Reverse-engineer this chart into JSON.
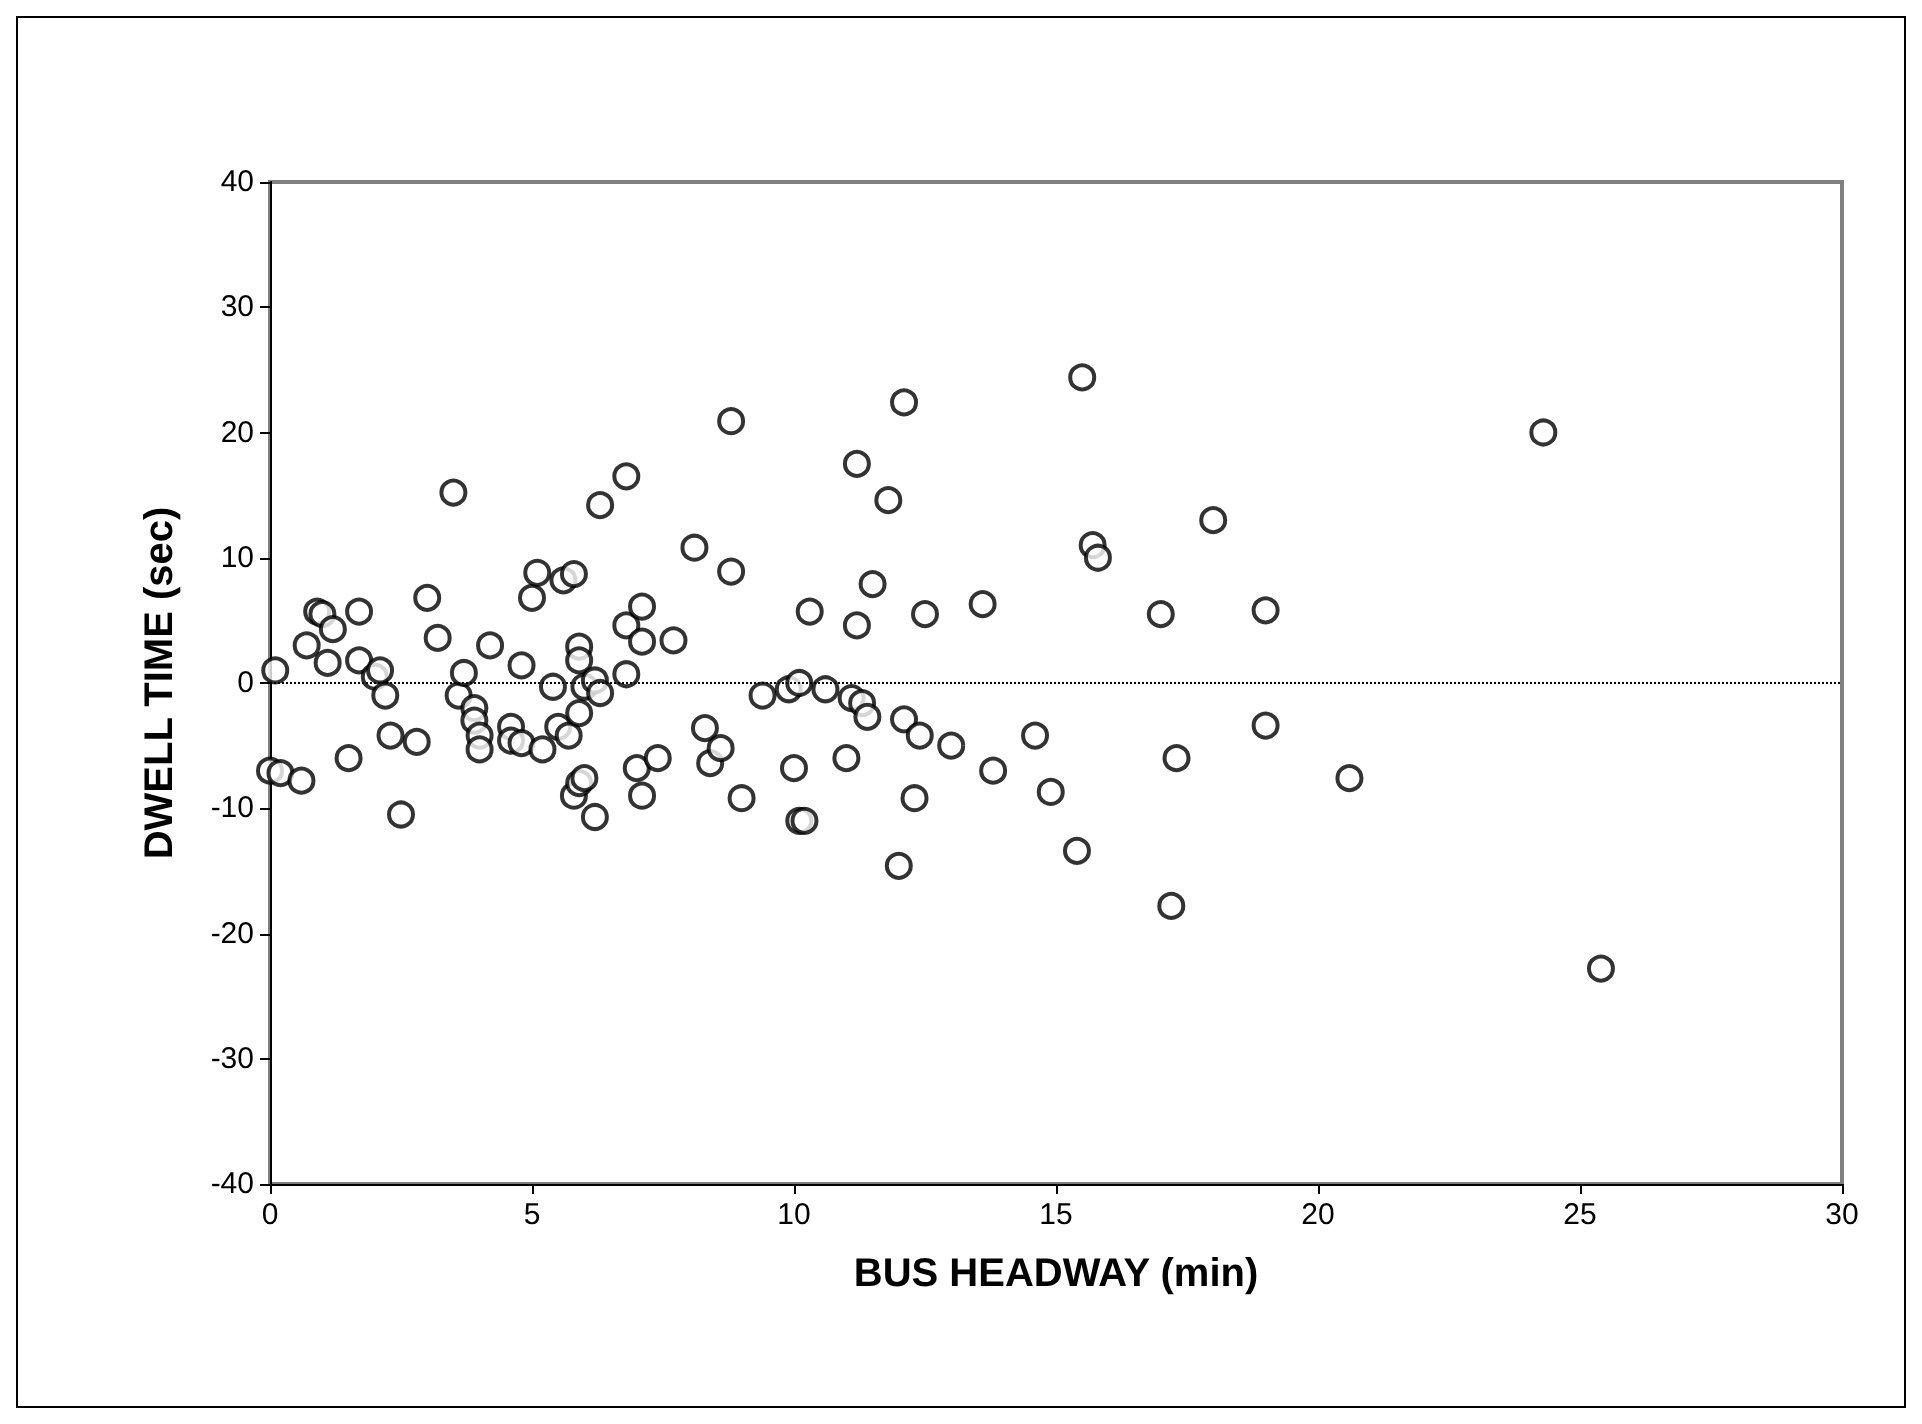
{
  "chart_data": {
    "type": "scatter",
    "xlabel": "BUS HEADWAY (min)",
    "ylabel": "DWELL TIME (sec)",
    "marker": "circle",
    "grid": false,
    "xlim": [
      0,
      30
    ],
    "xticks": [
      0,
      5,
      10,
      15,
      20,
      25,
      30
    ],
    "ylim": [
      -40,
      40
    ],
    "yticks": [
      -40,
      -30,
      -20,
      -10,
      0,
      10,
      20,
      30,
      40
    ],
    "ref_lines": [
      {
        "axis": "y",
        "value": 0,
        "line_style": "dotted",
        "color": "#000000"
      }
    ],
    "series": [
      {
        "color": "#000000",
        "x": [
          0.1,
          0,
          0.2,
          0.6,
          0.7,
          0.9,
          1.0,
          1.2,
          1.1,
          1.5,
          1.7,
          1.7,
          2.0,
          2.1,
          2.2,
          2.3,
          2.5,
          2.8,
          3.0,
          3.2,
          3.5,
          3.6,
          3.7,
          3.9,
          3.9,
          4.0,
          4.0,
          4.2,
          4.6,
          4.6,
          4.8,
          4.8,
          5.0,
          5.1,
          5.2,
          5.4,
          5.5,
          5.6,
          5.7,
          5.8,
          5.9,
          5.9,
          5.9,
          5.8,
          5.9,
          6.0,
          6.0,
          6.2,
          6.3,
          6.3,
          6.2,
          6.8,
          6.8,
          6.8,
          7.1,
          7.1,
          7.0,
          7.1,
          7.4,
          7.7,
          8.1,
          8.3,
          8.4,
          8.8,
          8.8,
          8.6,
          9.0,
          9.4,
          9.9,
          10.0,
          10.1,
          10.1,
          10.2,
          10.3,
          10.6,
          11.0,
          11.1,
          11.2,
          11.2,
          11.3,
          11.4,
          11.5,
          11.8,
          12.0,
          12.1,
          12.1,
          12.4,
          12.3,
          12.5,
          13.0,
          13.6,
          13.8,
          14.6,
          14.9,
          15.5,
          15.4,
          15.7,
          15.8,
          17.0,
          17.3,
          17.2,
          18.0,
          19.0,
          19.0,
          20.6,
          24.3,
          25.4
        ],
        "values": [
          1,
          -7,
          -7.2,
          -7.8,
          3,
          5.7,
          5.5,
          4.3,
          1.6,
          -6,
          5.7,
          1.8,
          0.5,
          1,
          -1,
          -4.2,
          -10.5,
          -4.7,
          6.8,
          3.6,
          15.2,
          -1,
          0.8,
          -2,
          -3,
          -4.2,
          -5.3,
          3,
          -3.5,
          -4.6,
          1.4,
          -4.8,
          6.8,
          8.8,
          -5.3,
          -0.3,
          -3.5,
          8.2,
          -4.2,
          8.7,
          2.9,
          1.8,
          -2.4,
          -9,
          -8,
          -7.6,
          -0.3,
          0.2,
          -0.8,
          14.2,
          -10.7,
          4.6,
          0.7,
          16.5,
          3.3,
          6.1,
          -6.8,
          -9,
          -6,
          3.4,
          10.8,
          -3.6,
          -6.4,
          20.9,
          8.9,
          -5.2,
          -9.2,
          -1,
          -0.5,
          -6.8,
          -11,
          0,
          -11,
          5.7,
          -0.5,
          -6,
          -1.2,
          4.6,
          17.5,
          -1.6,
          -2.7,
          7.9,
          14.6,
          -14.6,
          22.4,
          -2.9,
          -4.2,
          -9.2,
          5.5,
          -5,
          6.3,
          -7,
          -4.2,
          -8.7,
          24.4,
          -13.4,
          11,
          10,
          5.5,
          -6,
          -17.8,
          13,
          5.8,
          -3.4,
          -7.6,
          20,
          -22.8
        ]
      }
    ]
  }
}
